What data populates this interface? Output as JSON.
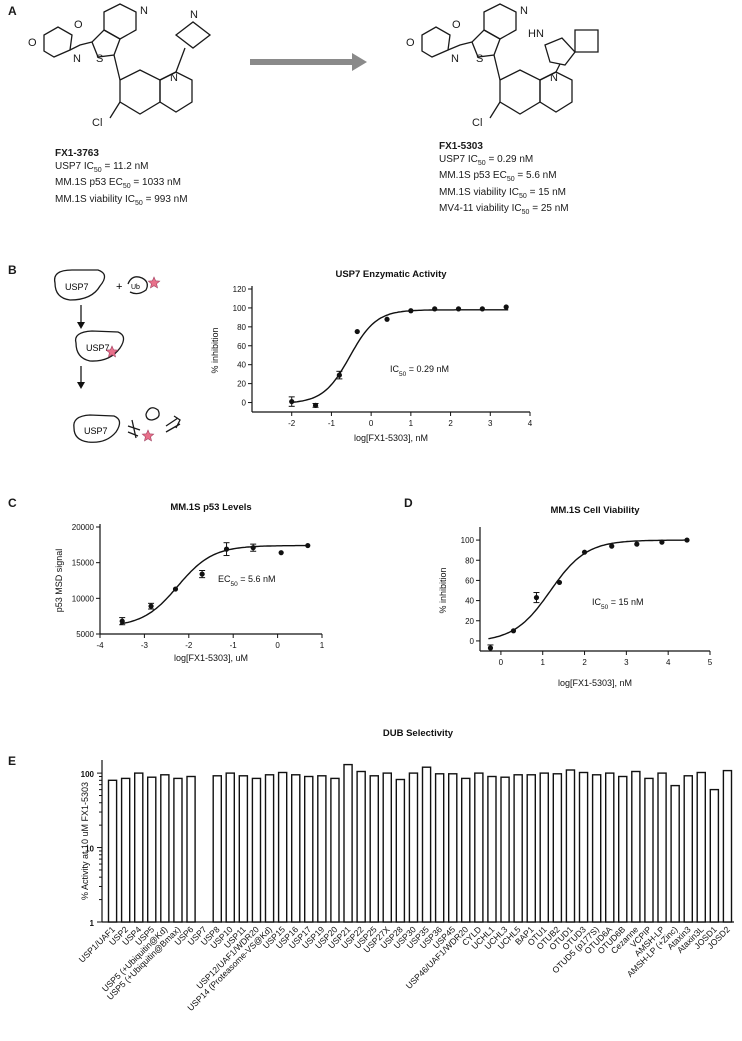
{
  "panels": {
    "a": "A",
    "b": "B",
    "c": "C",
    "d": "D",
    "e": "E"
  },
  "compound1": {
    "name": "FX1-3763",
    "lines": [
      {
        "pre": "USP7 IC",
        "sub": "50",
        "post": " = 11.2 nM"
      },
      {
        "pre": "MM.1S p53 EC",
        "sub": "50",
        "post": " = 1033 nM"
      },
      {
        "pre": "MM.1S viability IC",
        "sub": "50",
        "post": " = 993 nM"
      }
    ]
  },
  "compound2": {
    "name": "FX1-5303",
    "lines": [
      {
        "pre": "USP7 IC",
        "sub": "50",
        "post": " = 0.29 nM"
      },
      {
        "pre": "MM.1S p53 EC",
        "sub": "50",
        "post": " = 5.6 nM"
      },
      {
        "pre": "MM.1S viability IC",
        "sub": "50",
        "post": " = 15 nM"
      },
      {
        "pre": "MV4-11 viability IC",
        "sub": "50",
        "post": " = 25 nM"
      }
    ]
  },
  "atoms": {
    "N": "N",
    "S": "S",
    "O": "O",
    "Cl": "Cl",
    "HN": "HN"
  },
  "schematic": {
    "enzyme": "USP7",
    "substrate": "Ub",
    "plus": "+"
  },
  "colors": {
    "arrow": "#8a8a8a",
    "star": "#e8708a",
    "ink": "#111111",
    "bar_fill": "#ffffff"
  },
  "chart_data": [
    {
      "type": "scatter",
      "id": "B",
      "title": "USP7 Enzymatic Activity",
      "xlabel": "log[FX1-5303], nM",
      "ylabel": "% inhibition",
      "xlim": [
        -3,
        4
      ],
      "ylim": [
        -10,
        120
      ],
      "xticks": [
        -2,
        -1,
        0,
        1,
        2,
        3,
        4
      ],
      "yticks": [
        0,
        20,
        40,
        60,
        80,
        100,
        120
      ],
      "annotation": {
        "pre": "IC",
        "sub": "50",
        "post": " = 0.29 nM"
      },
      "points": [
        {
          "x": -2,
          "y": 1,
          "err": 5
        },
        {
          "x": -1.4,
          "y": -3,
          "err": 2
        },
        {
          "x": -0.8,
          "y": 29,
          "err": 4
        },
        {
          "x": -0.35,
          "y": 75
        },
        {
          "x": 0.4,
          "y": 88
        },
        {
          "x": 1.0,
          "y": 97
        },
        {
          "x": 1.6,
          "y": 99
        },
        {
          "x": 2.2,
          "y": 99
        },
        {
          "x": 2.8,
          "y": 99
        },
        {
          "x": 3.4,
          "y": 101
        }
      ],
      "fit": {
        "bottom": -1,
        "top": 98,
        "logec50": -0.54,
        "hill": 1.3
      }
    },
    {
      "type": "scatter",
      "id": "C",
      "title": "MM.1S p53 Levels",
      "xlabel": "log[FX1-5303], uM",
      "ylabel": "p53 MSD signal",
      "xlim": [
        -4,
        1
      ],
      "ylim": [
        5000,
        20000
      ],
      "xticks": [
        -4,
        -3,
        -2,
        -1,
        0,
        1
      ],
      "yticks": [
        5000,
        10000,
        15000,
        20000
      ],
      "annotation": {
        "pre": "EC",
        "sub": "50",
        "post": " = 5.6 nM"
      },
      "points": [
        {
          "x": -3.5,
          "y": 6800,
          "err": 500
        },
        {
          "x": -2.85,
          "y": 8900,
          "err": 400
        },
        {
          "x": -2.3,
          "y": 11300
        },
        {
          "x": -1.7,
          "y": 13400,
          "err": 500
        },
        {
          "x": -1.15,
          "y": 16900,
          "err": 900
        },
        {
          "x": -0.55,
          "y": 17100,
          "err": 500
        },
        {
          "x": 0.08,
          "y": 16400
        },
        {
          "x": 0.68,
          "y": 17400
        }
      ],
      "fit": {
        "bottom": 6000,
        "top": 17400,
        "logec50": -2.25,
        "hill": 1.1
      }
    },
    {
      "type": "scatter",
      "id": "D",
      "title": "MM.1S Cell Viability",
      "xlabel": "log[FX1-5303], nM",
      "ylabel": "% inhibition",
      "xlim": [
        -0.5,
        5
      ],
      "ylim": [
        -10,
        110
      ],
      "xticks": [
        0,
        1,
        2,
        3,
        4,
        5
      ],
      "yticks": [
        0,
        20,
        40,
        60,
        80,
        100
      ],
      "annotation": {
        "pre": "IC",
        "sub": "50",
        "post": " = 15 nM"
      },
      "points": [
        {
          "x": -0.25,
          "y": -7,
          "err": 3
        },
        {
          "x": 0.3,
          "y": 10
        },
        {
          "x": 0.85,
          "y": 43,
          "err": 5
        },
        {
          "x": 1.4,
          "y": 58
        },
        {
          "x": 2.0,
          "y": 88
        },
        {
          "x": 2.65,
          "y": 94
        },
        {
          "x": 3.25,
          "y": 96
        },
        {
          "x": 3.85,
          "y": 98
        },
        {
          "x": 4.45,
          "y": 100
        }
      ],
      "fit": {
        "bottom": -1,
        "top": 100,
        "logec50": 1.18,
        "hill": 1.0
      }
    },
    {
      "type": "bar",
      "id": "E",
      "title": "DUB Selectivity",
      "ylabel": "% Activity at 10 uM FX1-5303",
      "yscale": "log",
      "ylim": [
        1,
        150
      ],
      "yticks": [
        1,
        10,
        100
      ],
      "categories": [
        "USP1/UAF1",
        "USP2",
        "USP4",
        "USP5",
        "USP5 (+Ubiquitin@Kd)",
        "USP5 (+Ubiquitin@Bmax)",
        "USP6",
        "USP7",
        "USP8",
        "USP10",
        "USP11",
        "USP12/UAF1/WDR20",
        "USP14 (Proteasome-VS@Kd)",
        "USP15",
        "USP16",
        "USP17",
        "USP19",
        "USP20",
        "USP21",
        "USP22",
        "USP25",
        "USP27X",
        "USP28",
        "USP30",
        "USP35",
        "USP36",
        "USP45",
        "USP46/UAF1/WDR20",
        "CYLD",
        "UCHL1",
        "UCHL3",
        "UCHL5",
        "BAP1",
        "OTU1",
        "OTUB2",
        "OTUD1",
        "OTUD3",
        "OTUD5 (p177S)",
        "OTUD6A",
        "OTUD6B",
        "Cezanne",
        "VCPIP",
        "AMSH-LP",
        "AMSH-LP (+Zinc)",
        "Ataxin3",
        "Ataxin3L",
        "JOSD1",
        "JOSD2"
      ],
      "values": [
        80,
        85,
        100,
        88,
        95,
        85,
        90,
        null,
        92,
        100,
        92,
        85,
        95,
        102,
        95,
        90,
        92,
        85,
        130,
        105,
        92,
        100,
        82,
        100,
        120,
        98,
        98,
        85,
        100,
        90,
        88,
        95,
        95,
        100,
        98,
        110,
        102,
        95,
        100,
        90,
        105,
        85,
        100,
        68,
        92,
        102,
        60,
        108
      ]
    }
  ]
}
